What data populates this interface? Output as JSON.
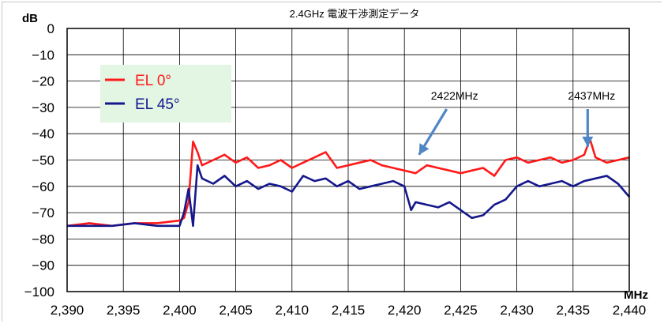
{
  "chart_data": {
    "type": "line",
    "title": "2.4GHz 電波干渉測定データ",
    "xlabel": "MHz",
    "ylabel": "dB",
    "xlim": [
      2390,
      2440
    ],
    "ylim": [
      -100,
      0
    ],
    "xticks": [
      2390,
      2395,
      2400,
      2405,
      2410,
      2415,
      2420,
      2425,
      2430,
      2435,
      2440
    ],
    "xtick_labels": [
      "2,390",
      "2,395",
      "2,400",
      "2,405",
      "2,410",
      "2,415",
      "2,420",
      "2,425",
      "2,430",
      "2,435",
      "2,440"
    ],
    "yticks": [
      0,
      -10,
      -20,
      -30,
      -40,
      -50,
      -60,
      -70,
      -80,
      -90,
      -100
    ],
    "ytick_labels": [
      "0",
      "−10",
      "−20",
      "−30",
      "−40",
      "−50",
      "−60",
      "−70",
      "−80",
      "−90",
      "−100"
    ],
    "grid": true,
    "legend": "top-left",
    "legend_background": "#e3f5e3",
    "series": [
      {
        "name": "EL 0°",
        "color": "#ff1a1a",
        "x": [
          2390,
          2392,
          2394,
          2396,
          2398,
          2400,
          2400.4,
          2400.8,
          2401.2,
          2401.6,
          2402,
          2403,
          2404,
          2405,
          2406,
          2407,
          2408,
          2409,
          2410,
          2411,
          2412,
          2413,
          2414,
          2415,
          2416,
          2417,
          2418,
          2419,
          2420,
          2421,
          2422,
          2423,
          2424,
          2425,
          2426,
          2427,
          2428,
          2429,
          2430,
          2431,
          2432,
          2433,
          2434,
          2435,
          2436,
          2436.5,
          2437,
          2438,
          2439,
          2440
        ],
        "y": [
          -75,
          -74,
          -75,
          -74,
          -74,
          -73,
          -72,
          -66,
          -43,
          -47,
          -52,
          -50,
          -48,
          -51,
          -49,
          -53,
          -52,
          -50,
          -53,
          -51,
          -49,
          -47,
          -53,
          -52,
          -51,
          -50,
          -52,
          -53,
          -54,
          -55,
          -52,
          -53,
          -54,
          -55,
          -54,
          -53,
          -56,
          -50,
          -49,
          -51,
          -50,
          -49,
          -51,
          -50,
          -48,
          -42,
          -49,
          -51,
          -50,
          -49
        ]
      },
      {
        "name": "EL 45°",
        "color": "#14188c",
        "x": [
          2390,
          2392,
          2394,
          2396,
          2398,
          2400,
          2400.4,
          2400.8,
          2401.2,
          2401.6,
          2402,
          2403,
          2404,
          2405,
          2406,
          2407,
          2408,
          2409,
          2410,
          2411,
          2412,
          2413,
          2414,
          2415,
          2416,
          2417,
          2418,
          2419,
          2420,
          2420.6,
          2421,
          2422,
          2423,
          2424,
          2425,
          2426,
          2427,
          2428,
          2429,
          2430,
          2431,
          2432,
          2433,
          2434,
          2435,
          2436,
          2437,
          2438,
          2439,
          2440
        ],
        "y": [
          -75,
          -75,
          -75,
          -74,
          -75,
          -75,
          -70,
          -61,
          -75,
          -52,
          -57,
          -59,
          -56,
          -60,
          -58,
          -61,
          -59,
          -60,
          -62,
          -56,
          -58,
          -57,
          -60,
          -58,
          -61,
          -60,
          -59,
          -58,
          -60,
          -69,
          -66,
          -67,
          -68,
          -66,
          -69,
          -72,
          -71,
          -67,
          -65,
          -60,
          -58,
          -60,
          -59,
          -58,
          -60,
          -58,
          -57,
          -56,
          -59,
          -64
        ]
      }
    ],
    "annotations": [
      {
        "text": "2422MHz",
        "x": 2421.3,
        "y": -48
      },
      {
        "text": "2437MHz",
        "x": 2436.3,
        "y": -45
      }
    ]
  }
}
